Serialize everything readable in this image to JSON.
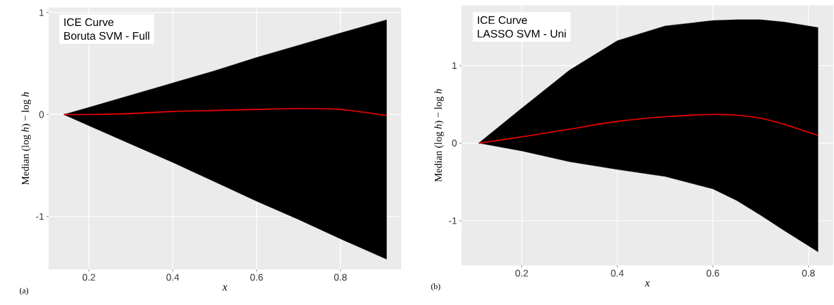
{
  "chart_data": [
    {
      "type": "line",
      "title": "ICE Curve",
      "subtitle": "Boruta SVM - Full",
      "xlabel": "x",
      "ylabel": "Median (log *h*)  −  log *h*",
      "annotations": [
        "(a)"
      ],
      "x": [
        0.14,
        0.2,
        0.3,
        0.4,
        0.5,
        0.6,
        0.7,
        0.8,
        0.91
      ],
      "series": [
        {
          "color": "#e00000",
          "values": [
            0,
            0.0,
            0.01,
            0.03,
            0.04,
            0.05,
            0.06,
            0.05,
            -0.01
          ],
          "lower": [
            0,
            -0.11,
            -0.29,
            -0.47,
            -0.66,
            -0.85,
            -1.03,
            -1.22,
            -1.42
          ],
          "upper": [
            0,
            0.07,
            0.19,
            0.31,
            0.43,
            0.56,
            0.68,
            0.8,
            0.93
          ]
        }
      ],
      "xlim": [
        0.104,
        0.945
      ],
      "ylim": [
        -1.52,
        1.05
      ],
      "xticks": [
        0.2,
        0.4,
        0.6,
        0.8
      ],
      "yticks": [
        -1,
        0,
        1
      ],
      "grid": true
    },
    {
      "type": "line",
      "title": "ICE Curve",
      "subtitle": "LASSO SVM - Uni",
      "xlabel": "x",
      "ylabel": "Median (log *h*)  −  log *h*",
      "annotations": [
        "(b)"
      ],
      "x": [
        0.11,
        0.2,
        0.3,
        0.4,
        0.5,
        0.6,
        0.65,
        0.7,
        0.75,
        0.82
      ],
      "series": [
        {
          "color": "#e00000",
          "values": [
            0,
            0.08,
            0.18,
            0.28,
            0.34,
            0.37,
            0.36,
            0.32,
            0.24,
            0.1
          ],
          "lower": [
            0,
            -0.1,
            -0.24,
            -0.34,
            -0.43,
            -0.59,
            -0.74,
            -0.93,
            -1.13,
            -1.4
          ],
          "upper": [
            0,
            0.45,
            0.94,
            1.32,
            1.51,
            1.58,
            1.59,
            1.59,
            1.56,
            1.49
          ]
        }
      ],
      "xlim": [
        0.074,
        0.852
      ],
      "ylim": [
        -1.575,
        1.774
      ],
      "xticks": [
        0.2,
        0.4,
        0.6,
        0.8
      ],
      "yticks": [
        -1,
        0,
        1
      ],
      "grid": true
    }
  ]
}
